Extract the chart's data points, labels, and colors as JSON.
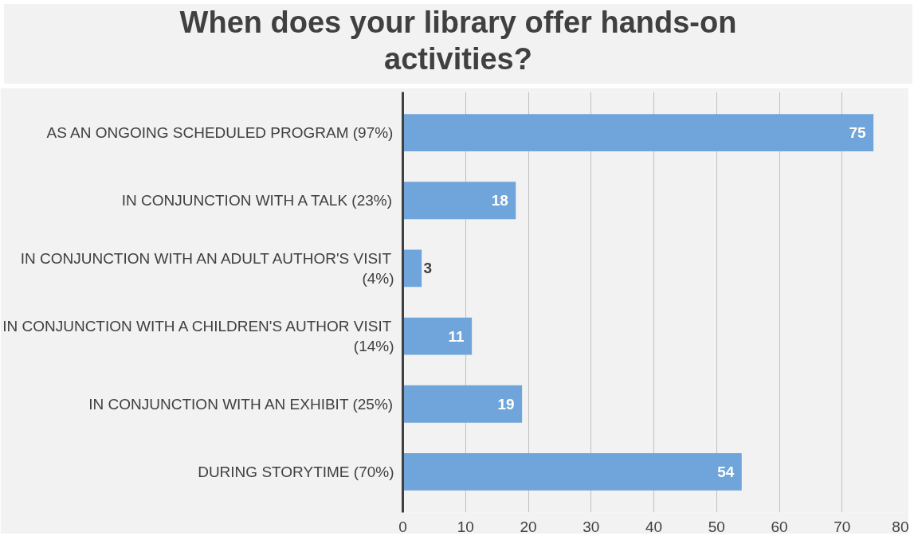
{
  "chart_data": {
    "type": "bar",
    "orientation": "horizontal",
    "title": "When does your library offer hands-on activities?",
    "categories": [
      "AS AN ONGOING SCHEDULED PROGRAM (97%)",
      "IN CONJUNCTION WITH A TALK (23%)",
      "IN CONJUNCTION WITH AN ADULT AUTHOR'S VISIT (4%)",
      "IN CONJUNCTION WITH A CHILDREN'S AUTHOR VISIT (14%)",
      "IN CONJUNCTION WITH AN EXHIBIT (25%)",
      "DURING STORYTIME (70%)"
    ],
    "values": [
      75,
      18,
      3,
      11,
      19,
      54
    ],
    "color": "#6fa5da",
    "data_labels": true,
    "xlim": [
      0,
      80
    ],
    "xticks": [
      0,
      10,
      20,
      30,
      40,
      50,
      60,
      70,
      80
    ],
    "grid": "x"
  }
}
